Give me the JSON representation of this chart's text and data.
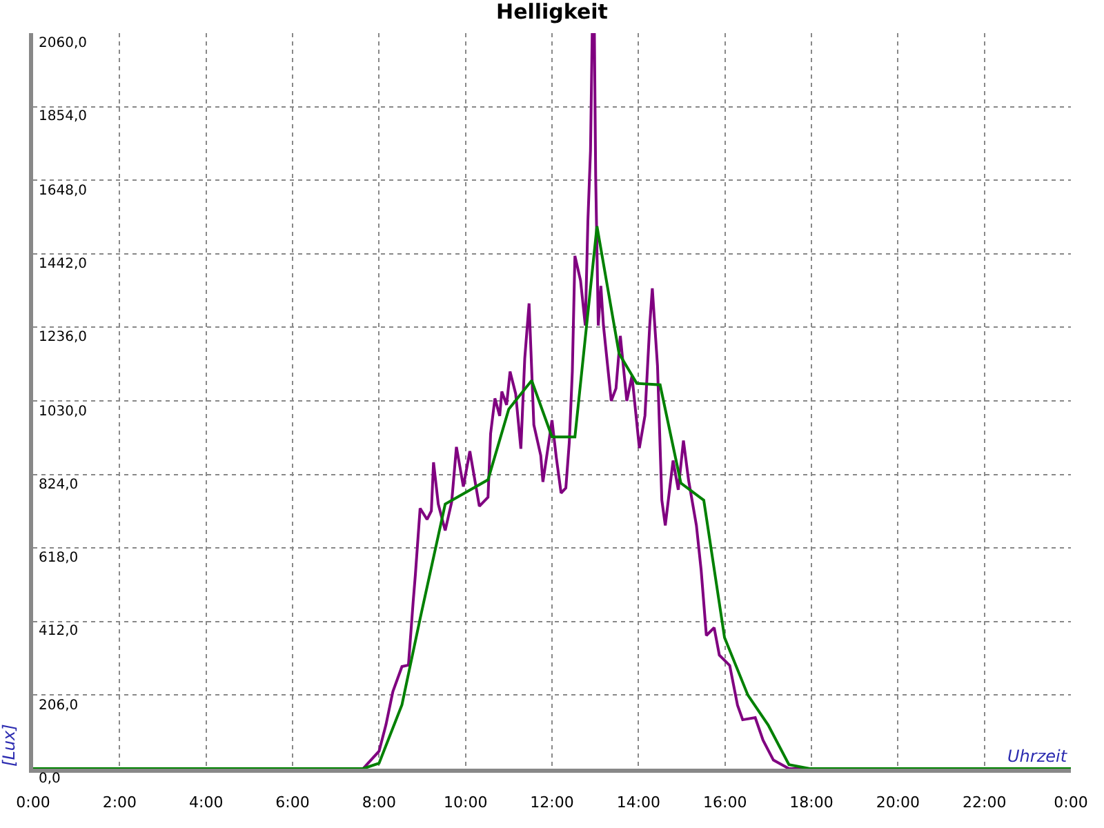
{
  "chart_data": {
    "type": "line",
    "title": "Helligkeit",
    "xlabel": "Uhrzeit",
    "ylabel": "[Lux]",
    "xlim": [
      0,
      24
    ],
    "ylim": [
      0,
      2060
    ],
    "xticks": [
      {
        "value": 0,
        "label": "0:00"
      },
      {
        "value": 2,
        "label": "2:00"
      },
      {
        "value": 4,
        "label": "4:00"
      },
      {
        "value": 6,
        "label": "6:00"
      },
      {
        "value": 8,
        "label": "8:00"
      },
      {
        "value": 10,
        "label": "10:00"
      },
      {
        "value": 12,
        "label": "12:00"
      },
      {
        "value": 14,
        "label": "14:00"
      },
      {
        "value": 16,
        "label": "16:00"
      },
      {
        "value": 18,
        "label": "18:00"
      },
      {
        "value": 20,
        "label": "20:00"
      },
      {
        "value": 22,
        "label": "22:00"
      },
      {
        "value": 24,
        "label": "0:00"
      }
    ],
    "yticks": [
      {
        "value": 0,
        "label": "0,0"
      },
      {
        "value": 206,
        "label": "206,0"
      },
      {
        "value": 412,
        "label": "412,0"
      },
      {
        "value": 618,
        "label": "618,0"
      },
      {
        "value": 824,
        "label": "824,0"
      },
      {
        "value": 1030,
        "label": "1030,0"
      },
      {
        "value": 1236,
        "label": "1236,0"
      },
      {
        "value": 1442,
        "label": "1442,0"
      },
      {
        "value": 1648,
        "label": "1648,0"
      },
      {
        "value": 1854,
        "label": "1854,0"
      },
      {
        "value": 2060,
        "label": "2060,0"
      }
    ],
    "grid": true,
    "marker": "none",
    "line_style": "solid",
    "series": [
      {
        "color": "#800080",
        "x": [
          0,
          7.63,
          8.0,
          8.16,
          8.32,
          8.53,
          8.68,
          8.79,
          8.84,
          8.95,
          9.11,
          9.21,
          9.26,
          9.37,
          9.53,
          9.68,
          9.79,
          9.95,
          10.1,
          10.32,
          10.52,
          10.58,
          10.68,
          10.79,
          10.84,
          10.95,
          11.03,
          11.16,
          11.28,
          11.37,
          11.47,
          11.58,
          11.74,
          11.79,
          12.0,
          12.1,
          12.21,
          12.32,
          12.4,
          12.47,
          12.53,
          12.66,
          12.77,
          12.83,
          12.89,
          12.93,
          12.98,
          13.01,
          13.07,
          13.13,
          13.19,
          13.37,
          13.48,
          13.58,
          13.73,
          13.85,
          14.02,
          14.15,
          14.26,
          14.32,
          14.44,
          14.54,
          14.62,
          14.8,
          14.92,
          15.04,
          15.16,
          15.34,
          15.45,
          15.57,
          15.75,
          15.87,
          16.11,
          16.29,
          16.41,
          16.7,
          16.88,
          17.12,
          17.48,
          24
        ],
        "values": [
          0,
          0,
          49,
          123,
          216,
          286,
          290,
          469,
          543,
          729,
          698,
          722,
          858,
          741,
          667,
          747,
          901,
          790,
          889,
          735,
          760,
          938,
          1037,
          988,
          1056,
          1019,
          1112,
          1050,
          896,
          1149,
          1303,
          963,
          877,
          803,
          976,
          871,
          772,
          786,
          914,
          1112,
          1436,
          1367,
          1241,
          1534,
          1730,
          2060,
          2060,
          1660,
          1241,
          1352,
          1241,
          1030,
          1065,
          1212,
          1030,
          1100,
          898,
          989,
          1241,
          1345,
          1128,
          752,
          681,
          863,
          781,
          919,
          807,
          681,
          555,
          373,
          395,
          318,
          289,
          178,
          137,
          143,
          80,
          24,
          0,
          0
        ]
      },
      {
        "color": "#008000",
        "x": [
          0,
          7.63,
          8.0,
          8.53,
          8.95,
          9.53,
          10.52,
          11.0,
          11.53,
          12.0,
          12.53,
          13.04,
          13.55,
          13.96,
          14.5,
          14.98,
          15.51,
          15.99,
          16.53,
          17.0,
          17.48,
          17.96,
          24
        ],
        "values": [
          0,
          0,
          15,
          179,
          420,
          741,
          809,
          1007,
          1087,
          929,
          929,
          1519,
          1163,
          1079,
          1075,
          800,
          752,
          367,
          206,
          122,
          11,
          0,
          0
        ]
      }
    ]
  }
}
